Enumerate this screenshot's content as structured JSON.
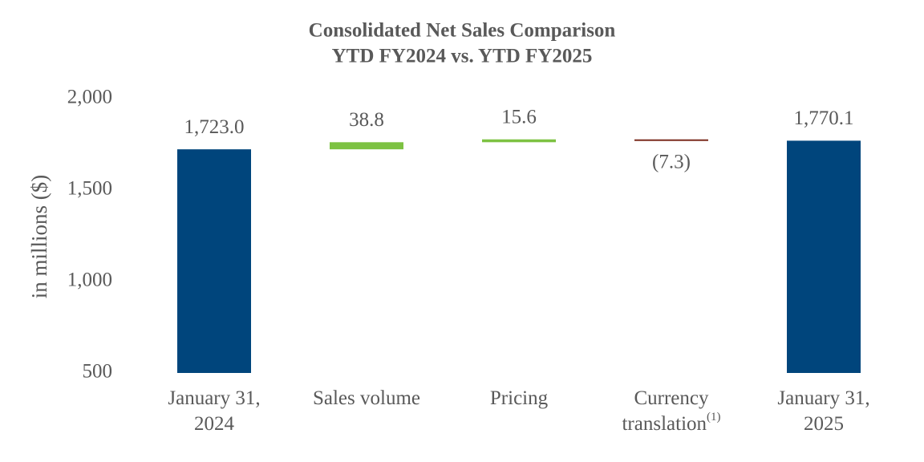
{
  "chart_data": {
    "type": "waterfall",
    "title": "Consolidated Net Sales Comparison",
    "subtitle": "YTD FY2024 vs. YTD FY2025",
    "y_label": "in millions ($)",
    "categories": [
      [
        "January 31,",
        "2024"
      ],
      [
        "Sales volume"
      ],
      [
        "Pricing"
      ],
      [
        "Currency",
        "translation"
      ],
      [
        "January 31,",
        "2025"
      ]
    ],
    "category_superscripts": [
      null,
      null,
      null,
      "(1)",
      null
    ],
    "values": [
      1723.0,
      38.8,
      15.6,
      -7.3,
      1770.1
    ],
    "value_labels": [
      "1,723.0",
      "38.8",
      "15.6",
      "(7.3)",
      "1,770.1"
    ],
    "measure": [
      "absolute",
      "relative",
      "relative",
      "relative",
      "total"
    ],
    "colors": {
      "total": "#00457c",
      "increase": "#7dc242",
      "decrease": "#7b2c1e"
    },
    "ylim": [
      500,
      2000
    ],
    "yticks": [
      500,
      {
        "value": 1000,
        "label": "1,000"
      },
      {
        "value": 1500,
        "label": "1,500"
      },
      {
        "value": 2000,
        "label": "2,000"
      }
    ],
    "grid": false
  }
}
